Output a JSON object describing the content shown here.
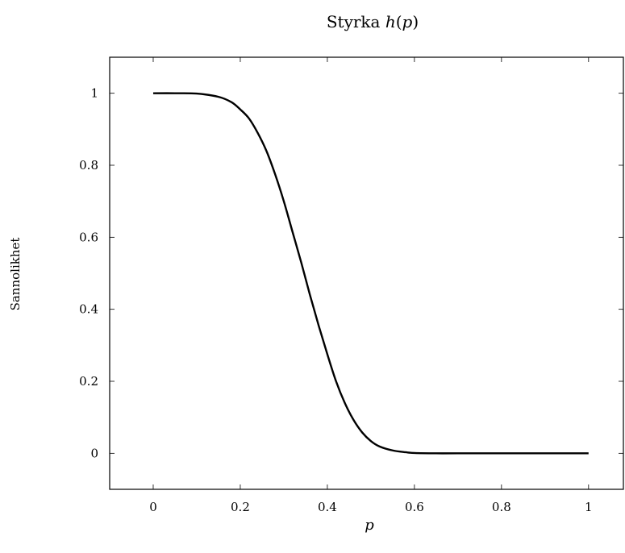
{
  "chart_data": {
    "type": "line",
    "title": "Styrka h(p)",
    "title_parts": {
      "text": "Styrka ",
      "math": "h",
      "paren_open": "(",
      "var": "p",
      "paren_close": ")"
    },
    "xlabel": "p",
    "ylabel": "Sannolikhet",
    "xlim": [
      -0.1,
      1.08
    ],
    "ylim": [
      -0.1,
      1.1
    ],
    "xticks": [
      0,
      0.2,
      0.4,
      0.6,
      0.8,
      1
    ],
    "xtick_labels": [
      "0",
      "0.2",
      "0.4",
      "0.6",
      "0.8",
      "1"
    ],
    "yticks": [
      0,
      0.2,
      0.4,
      0.6,
      0.8,
      1
    ],
    "ytick_labels": [
      "0",
      "0.2",
      "0.4",
      "0.6",
      "0.8",
      "1"
    ],
    "grid": false,
    "line_color": "#000000",
    "series": [
      {
        "x": [
          0,
          0.05,
          0.1,
          0.15,
          0.18,
          0.2,
          0.22,
          0.24,
          0.26,
          0.28,
          0.3,
          0.32,
          0.34,
          0.36,
          0.38,
          0.4,
          0.42,
          0.44,
          0.46,
          0.48,
          0.5,
          0.52,
          0.55,
          0.58,
          0.6,
          0.65,
          0.7,
          0.8,
          0.9,
          1
        ],
        "y": [
          1,
          1,
          0.999,
          0.99,
          0.975,
          0.955,
          0.93,
          0.89,
          0.84,
          0.775,
          0.7,
          0.615,
          0.53,
          0.44,
          0.355,
          0.275,
          0.2,
          0.14,
          0.093,
          0.058,
          0.034,
          0.019,
          0.008,
          0.003,
          0.001,
          0,
          0,
          0,
          0,
          0
        ]
      }
    ]
  }
}
